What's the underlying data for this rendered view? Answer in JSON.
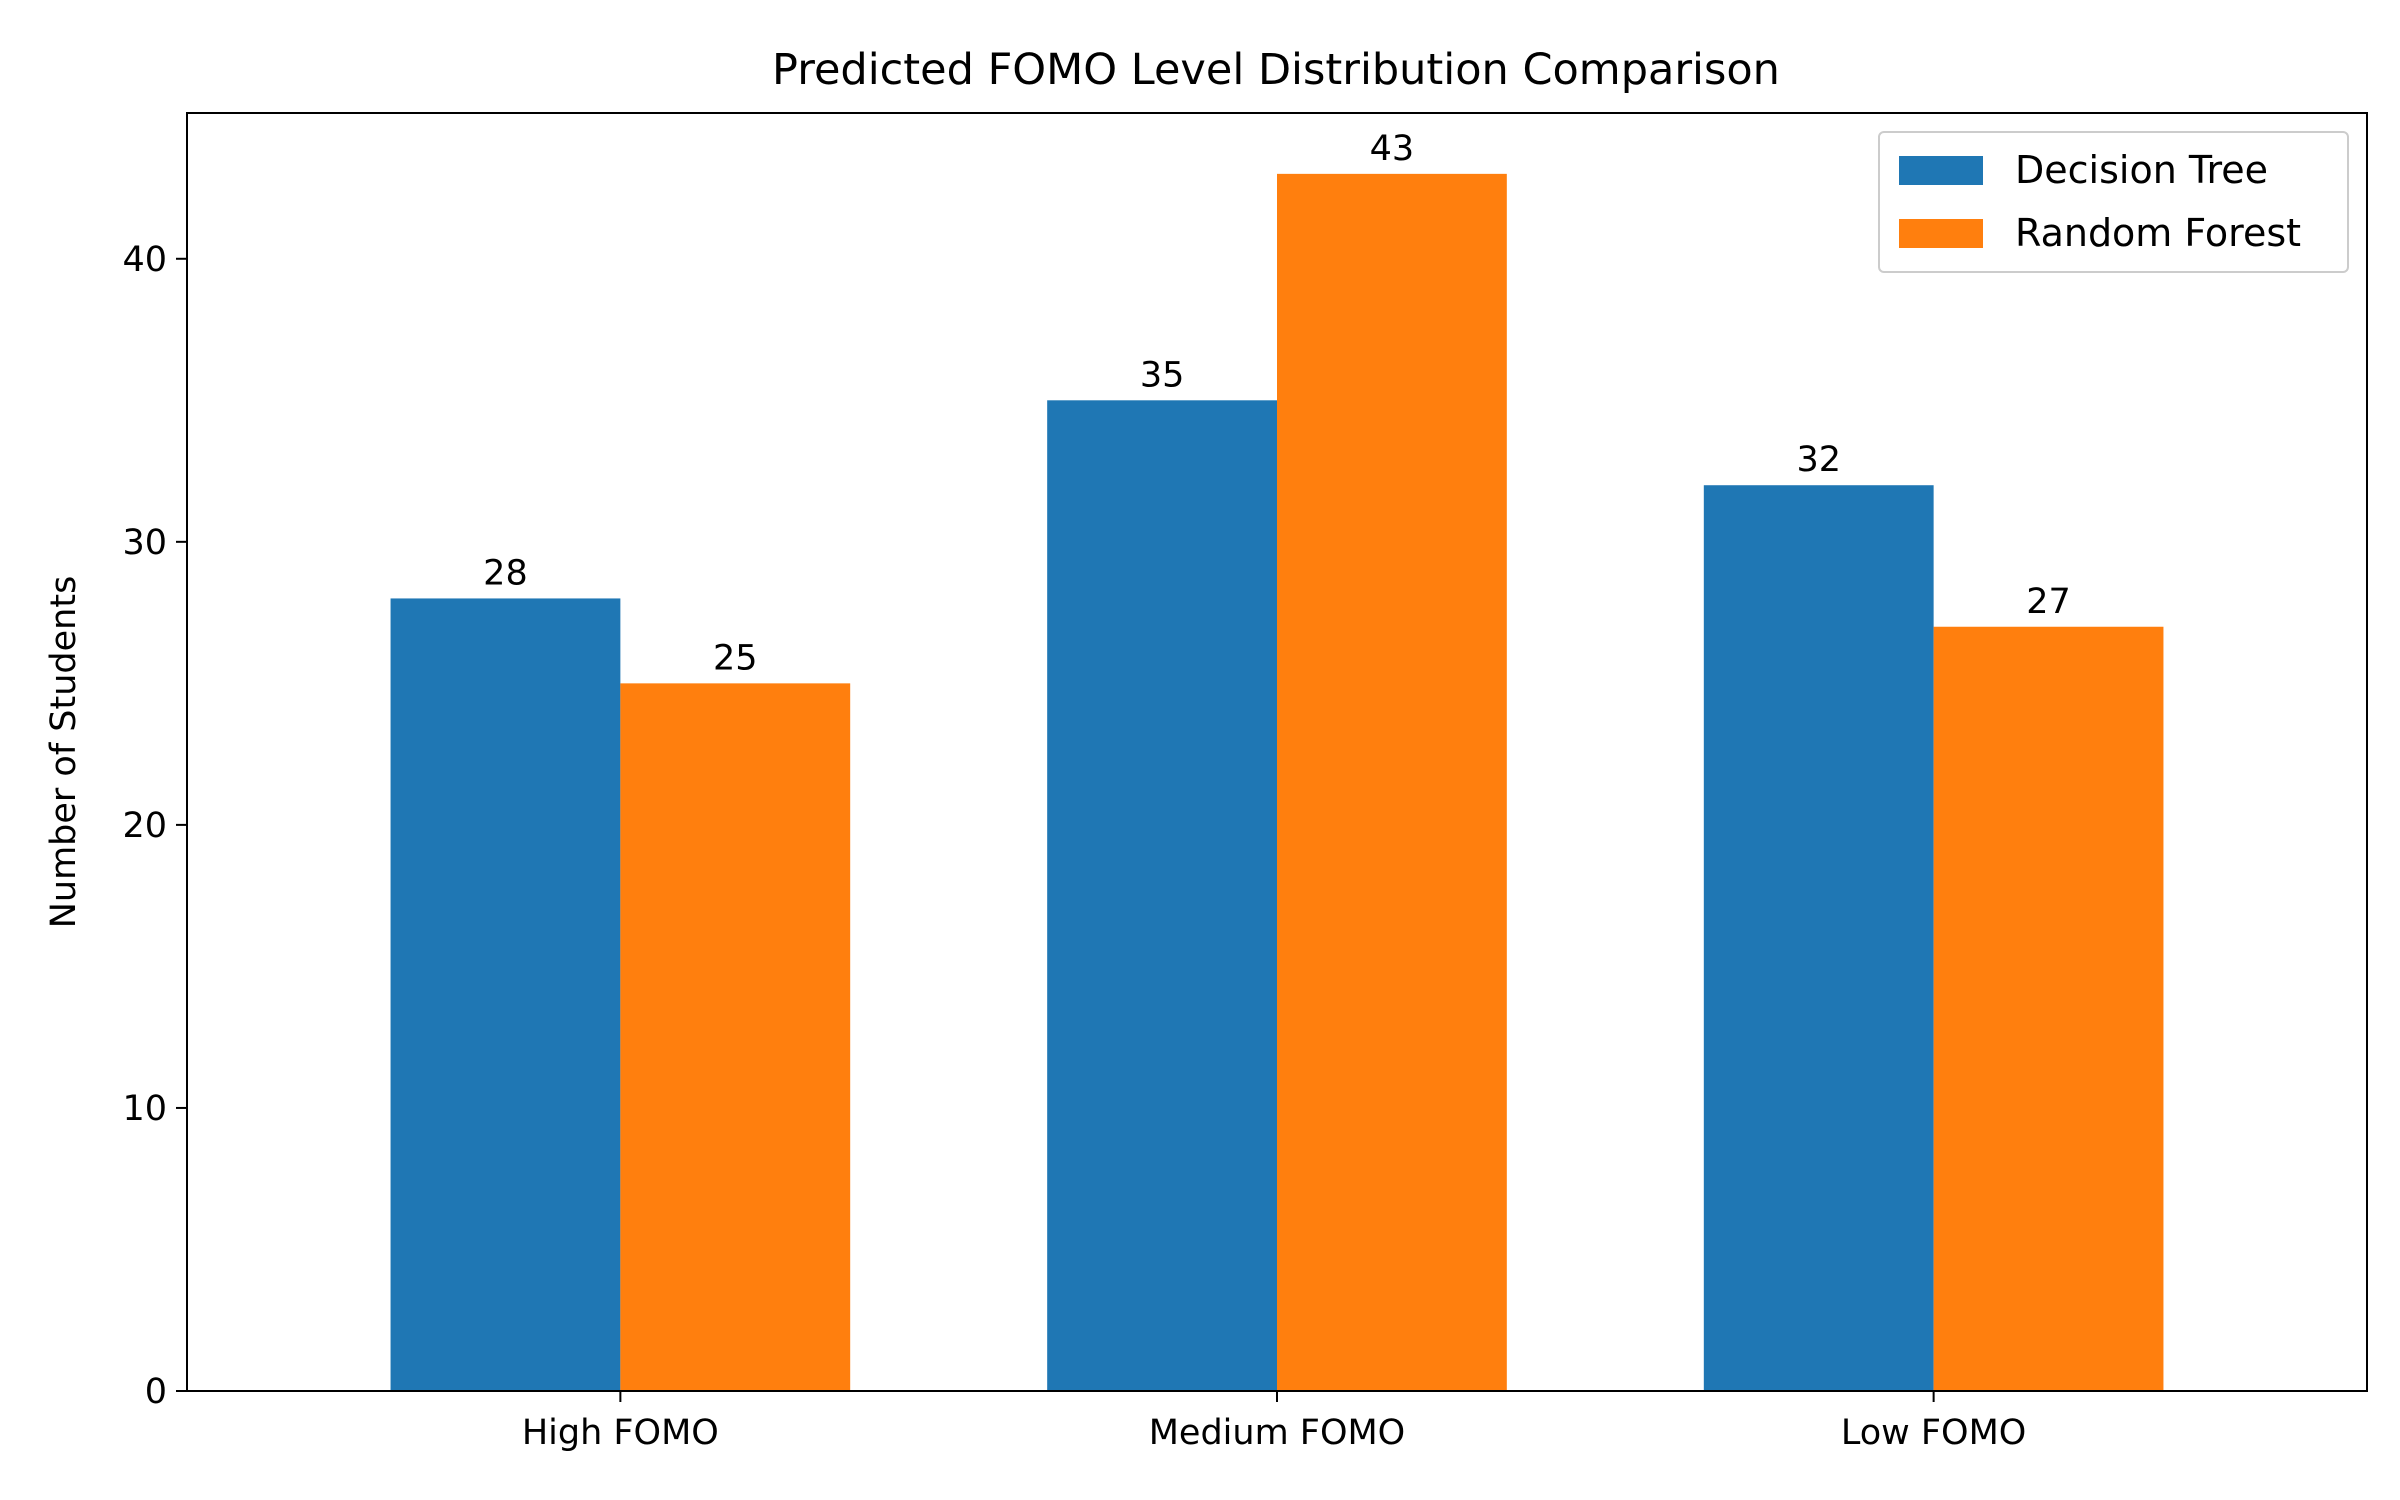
{
  "chart_data": {
    "type": "bar",
    "title": "Predicted FOMO Level Distribution Comparison",
    "xlabel": "",
    "ylabel": "Number of Students",
    "categories": [
      "High FOMO",
      "Medium FOMO",
      "Low FOMO"
    ],
    "series": [
      {
        "name": "Decision Tree",
        "values": [
          28,
          35,
          32
        ],
        "color": "#1f77b4"
      },
      {
        "name": "Random Forest",
        "values": [
          25,
          43,
          27
        ],
        "color": "#ff7f0e"
      }
    ],
    "ylim": [
      0,
      45.15
    ],
    "yticks": [
      0,
      10,
      20,
      30,
      40
    ],
    "grid": false,
    "legend_position": "top-right",
    "data_labels": true
  }
}
